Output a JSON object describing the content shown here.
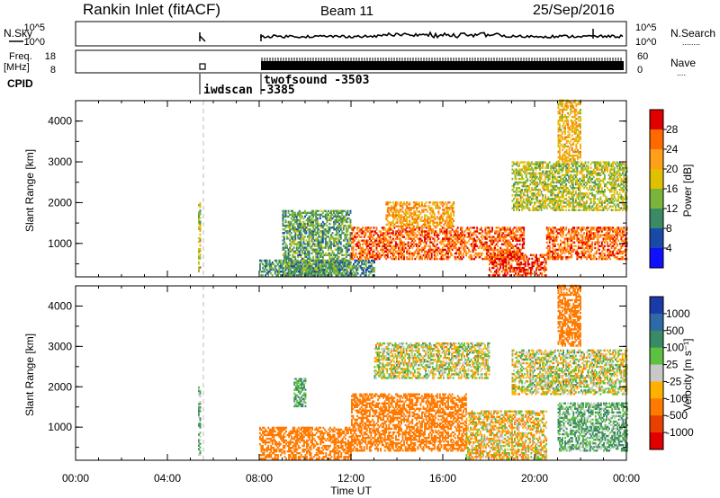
{
  "header": {
    "station": "Rankin Inlet (fitACF)",
    "beam": "Beam 11",
    "date": "25/Sep/2016"
  },
  "strip_labels": {
    "nsky": "N.Sky",
    "nsearch": "N.Search",
    "nsearch_dots": "........",
    "freq_line1": "Freq.",
    "freq_line2": "[MHz]",
    "nave": "Nave",
    "nave_dots": "....",
    "cpid": "CPID",
    "noise_left_top": "10^5",
    "noise_left_bottom": "10^0",
    "noise_right_top": "10^5",
    "noise_right_bottom": "10^0",
    "freq_left_top": "18",
    "freq_left_bottom": "8",
    "nave_right_top": "60",
    "nave_right_bottom": "0"
  },
  "cpid_labels": [
    {
      "name": "iwdscan",
      "id": "-3385"
    },
    {
      "name": "twofsound",
      "id": "-3503"
    }
  ],
  "axes": {
    "ylabel": "Slant Range [km]",
    "xlabel": "Time UT",
    "yticks": [
      "1000",
      "2000",
      "3000",
      "4000"
    ],
    "xticks": [
      "00:00",
      "04:00",
      "08:00",
      "12:00",
      "16:00",
      "20:00",
      "00:00"
    ]
  },
  "power_scale": {
    "title": "Power [dB]",
    "labels": [
      "28",
      "24",
      "20",
      "16",
      "12",
      "8",
      "4"
    ],
    "colors": [
      "#e00000",
      "#ff6a00",
      "#ff9f1a",
      "#e0c000",
      "#7ab43a",
      "#3a8a66",
      "#1a4aa8",
      "#1010ff"
    ]
  },
  "velocity_scale": {
    "title": "Velocity [m s⁻¹]",
    "labels": [
      "1000",
      "500",
      "100",
      "25",
      "-25",
      "-100",
      "-500",
      "-1000"
    ],
    "colors": [
      "#1a3aa8",
      "#2e6aa8",
      "#3a8a66",
      "#5cc040",
      "#c8c8c8",
      "#ffb000",
      "#ff7a00",
      "#e84000",
      "#e00000"
    ]
  },
  "chart_data": [
    {
      "type": "heatmap",
      "title": "Power [dB]",
      "xlabel": "Time UT",
      "ylabel": "Slant Range [km]",
      "xlim": [
        "00:00",
        "24:00"
      ],
      "ylim": [
        180,
        4500
      ],
      "zlim": [
        0,
        30
      ],
      "observations": [
        {
          "time": [
            "05:20",
            "05:25"
          ],
          "range": [
            300,
            2000
          ],
          "power": 14
        },
        {
          "time": [
            "08:00",
            "13:00"
          ],
          "range": [
            200,
            600
          ],
          "power": 8
        },
        {
          "time": [
            "09:00",
            "12:00"
          ],
          "range": [
            200,
            1800
          ],
          "power": 10
        },
        {
          "time": [
            "12:00",
            "19:30"
          ],
          "range": [
            600,
            1400
          ],
          "power": 24
        },
        {
          "time": [
            "13:30",
            "16:30"
          ],
          "range": [
            1400,
            2000
          ],
          "power": 20
        },
        {
          "time": [
            "18:00",
            "20:30"
          ],
          "range": [
            200,
            700
          ],
          "power": 26
        },
        {
          "time": [
            "20:30",
            "24:00"
          ],
          "range": [
            600,
            1400
          ],
          "power": 24
        },
        {
          "time": [
            "19:00",
            "24:00"
          ],
          "range": [
            1800,
            3000
          ],
          "power": 14
        },
        {
          "time": [
            "21:00",
            "22:00"
          ],
          "range": [
            3000,
            4500
          ],
          "power": 18
        }
      ]
    },
    {
      "type": "heatmap",
      "title": "Velocity [m s⁻¹]",
      "xlabel": "Time UT",
      "ylabel": "Slant Range [km]",
      "xlim": [
        "00:00",
        "24:00"
      ],
      "ylim": [
        180,
        4500
      ],
      "zlim": [
        -1000,
        1000
      ],
      "observations": [
        {
          "time": [
            "05:20",
            "05:25"
          ],
          "range": [
            300,
            2000
          ],
          "velocity": 100
        },
        {
          "time": [
            "08:00",
            "12:00"
          ],
          "range": [
            200,
            1000
          ],
          "velocity": -300
        },
        {
          "time": [
            "09:30",
            "10:00"
          ],
          "range": [
            1500,
            2200
          ],
          "velocity": 100
        },
        {
          "time": [
            "12:00",
            "17:00"
          ],
          "range": [
            400,
            1800
          ],
          "velocity": -300
        },
        {
          "time": [
            "17:00",
            "20:30"
          ],
          "range": [
            200,
            1400
          ],
          "velocity": -50
        },
        {
          "time": [
            "13:00",
            "18:00"
          ],
          "range": [
            2200,
            3100
          ],
          "velocity": 0
        },
        {
          "time": [
            "19:00",
            "24:00"
          ],
          "range": [
            1800,
            2900
          ],
          "velocity": 0
        },
        {
          "time": [
            "21:00",
            "24:00"
          ],
          "range": [
            400,
            1600
          ],
          "velocity": 100
        },
        {
          "time": [
            "21:00",
            "22:00"
          ],
          "range": [
            3000,
            4500
          ],
          "velocity": -300
        }
      ]
    }
  ]
}
